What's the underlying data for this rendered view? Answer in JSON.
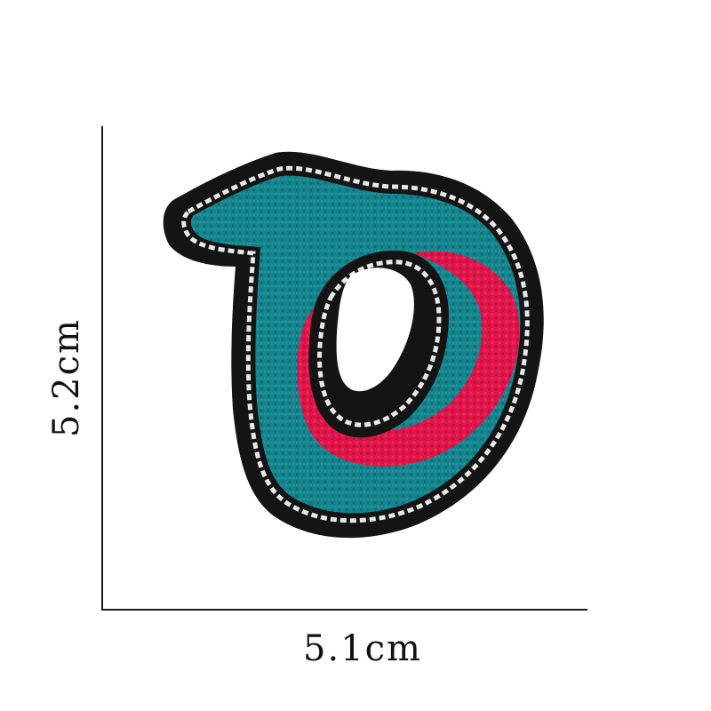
{
  "dimensions": {
    "height_label": "5.2cm",
    "width_label": "5.1cm"
  },
  "patch": {
    "colors": {
      "felt_border": "#141414",
      "stitch": "#e8e8e8",
      "teal": "#16838c",
      "pink": "#e0154a"
    }
  }
}
